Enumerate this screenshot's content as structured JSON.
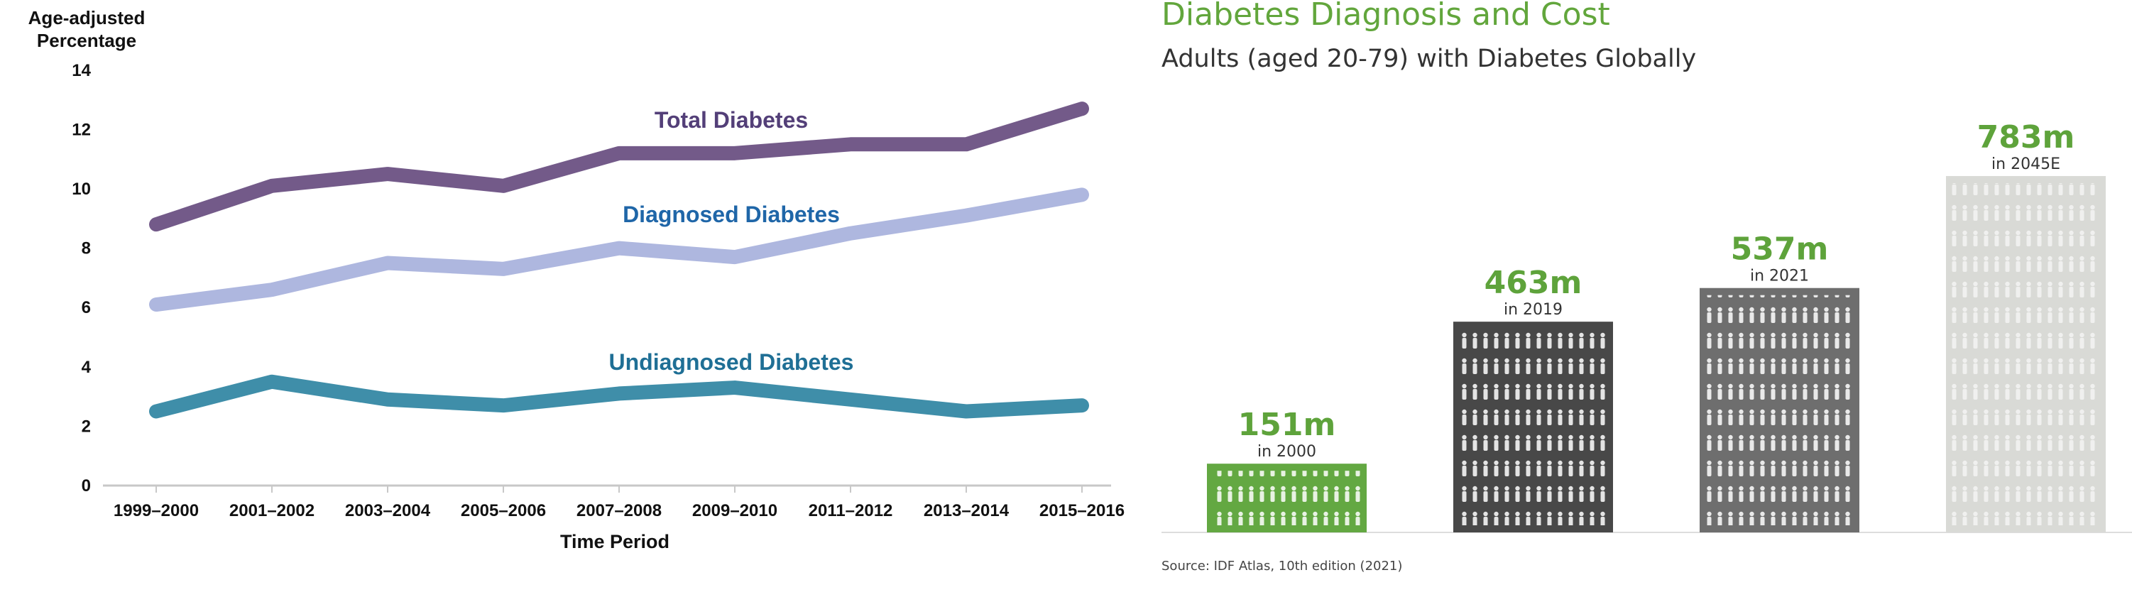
{
  "chart_data": [
    {
      "type": "line",
      "title": "",
      "ylabel_line1": "Age-adjusted",
      "ylabel_line2": "Percentage",
      "xlabel": "Time Period",
      "ylim": [
        0,
        14
      ],
      "yticks": [
        "0",
        "2",
        "4",
        "6",
        "8",
        "10",
        "12",
        "14"
      ],
      "categories": [
        "1999–2000",
        "2001–2002",
        "2003–2004",
        "2005–2006",
        "2007–2008",
        "2009–2010",
        "2011–2012",
        "2013–2014",
        "2015–2016"
      ],
      "series": [
        {
          "name": "Total Diabetes",
          "color": "#735a89",
          "label_color": "#533f78",
          "values": [
            8.8,
            10.1,
            10.5,
            10.1,
            11.2,
            11.2,
            11.5,
            11.5,
            12.7
          ]
        },
        {
          "name": "Diagnosed Diabetes",
          "color": "#aeb7df",
          "label_color": "#1f66a8",
          "values": [
            6.1,
            6.6,
            7.5,
            7.3,
            8.0,
            7.7,
            8.5,
            9.1,
            9.8
          ]
        },
        {
          "name": "Undiagnosed Diabetes",
          "color": "#3f8ea9",
          "label_color": "#1f6f95",
          "values": [
            2.5,
            3.5,
            2.9,
            2.7,
            3.1,
            3.3,
            2.9,
            2.5,
            2.7
          ]
        }
      ]
    },
    {
      "type": "bar",
      "title": "Diabetes Diagnosis and Cost",
      "subtitle": "Adults (aged 20-79) with Diabetes Globally",
      "unit": "millions",
      "source": "Source: IDF Atlas, 10th edition (2021)",
      "bars": [
        {
          "value": 151,
          "value_label": "151m",
          "year_label": "in 2000",
          "color": "#63a842",
          "label_color": "#5ea33b"
        },
        {
          "value": 463,
          "value_label": "463m",
          "year_label": "in 2019",
          "color": "#484848",
          "label_color": "#5ea33b"
        },
        {
          "value": 537,
          "value_label": "537m",
          "year_label": "in 2021",
          "color": "#6e6e6e",
          "label_color": "#5ea33b"
        },
        {
          "value": 783,
          "value_label": "783m",
          "year_label": "in 2045E",
          "color": "#d9dad6",
          "label_color": "#5ea33b"
        }
      ]
    }
  ]
}
